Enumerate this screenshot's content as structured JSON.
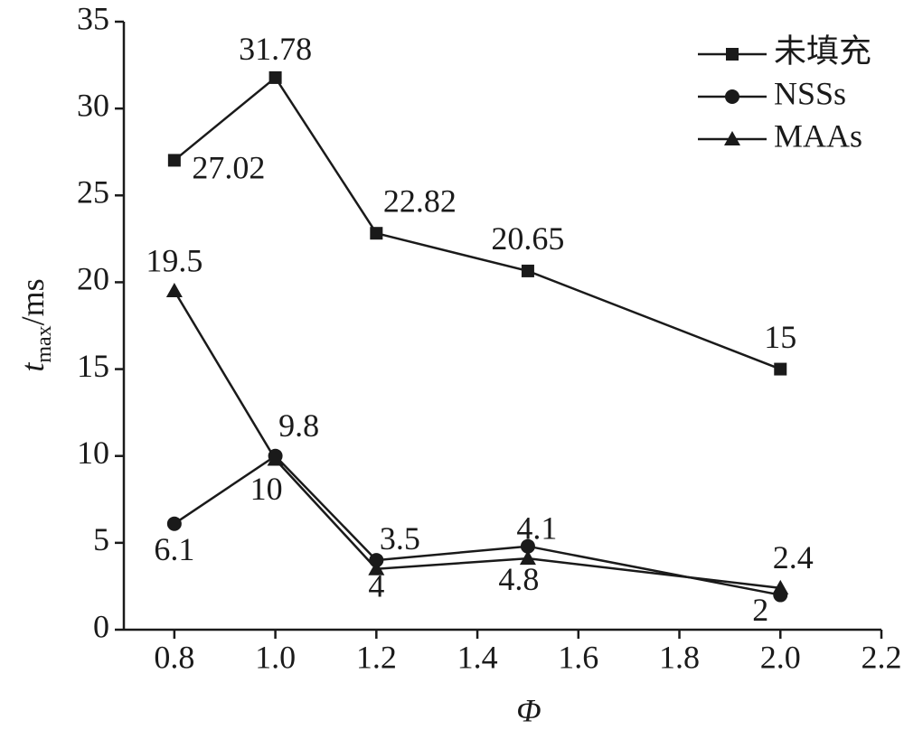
{
  "chart_data": {
    "type": "line",
    "x_label": "Φ",
    "y_label": {
      "main": "t",
      "sub": "max",
      "unit": "/ms"
    },
    "x": [
      0.8,
      1.0,
      1.2,
      1.5,
      2.0
    ],
    "series": [
      {
        "name": "未填充",
        "color": "#1a1a1a",
        "marker": "square",
        "values": [
          27.02,
          31.78,
          22.82,
          20.65,
          15
        ]
      },
      {
        "name": "NSSs",
        "color": "#1a1a1a",
        "marker": "circle",
        "values": [
          6.1,
          10,
          4,
          4.8,
          2
        ]
      },
      {
        "name": "MAAs",
        "color": "#1a1a1a",
        "marker": "triangle",
        "values": [
          19.5,
          9.8,
          3.5,
          4.1,
          2.4
        ]
      }
    ],
    "xlim": [
      0.7,
      2.2
    ],
    "xticks": [
      0.8,
      {
        "value": 1.0,
        "label": "1.0"
      },
      1.2,
      1.4,
      1.6,
      1.8,
      {
        "value": 2.0,
        "label": "2.0"
      },
      2.2
    ],
    "ylim": [
      0,
      35
    ],
    "yticks": [
      0,
      5,
      10,
      15,
      20,
      25,
      30,
      35
    ],
    "legend": "top-right"
  }
}
